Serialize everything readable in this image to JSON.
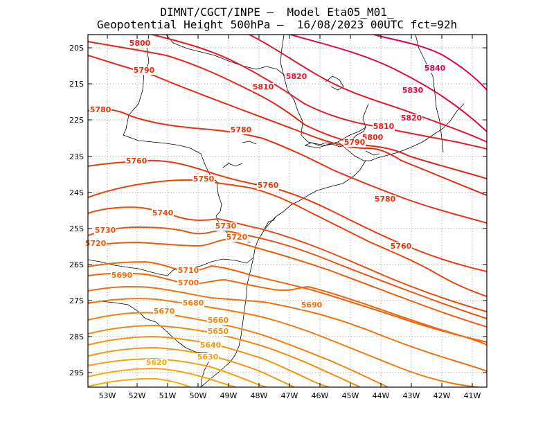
{
  "header": {
    "line1": "DIMNT/CGCT/INPE –  Model Eta05_M01_",
    "line2": "Geopotential Height 500hPa –  16/08/2023 00UTC fct=92h"
  },
  "axes": {
    "lat_labels": [
      "20S",
      "21S",
      "22S",
      "23S",
      "24S",
      "25S",
      "26S",
      "27S",
      "28S",
      "29S"
    ],
    "lon_labels": [
      "53W",
      "52W",
      "51W",
      "50W",
      "49W",
      "48W",
      "47W",
      "46W",
      "45W",
      "44W",
      "43W",
      "42W",
      "41W"
    ]
  },
  "contours": {
    "5840": {
      "label": "5840",
      "color": "#e0004a"
    },
    "5830": {
      "label": "5830",
      "color": "#e20a3c"
    },
    "5820": {
      "label": "5820",
      "color": "#e4142e"
    },
    "5810": {
      "label": "5810",
      "color": "#e51e22"
    },
    "5800": {
      "label": "5800",
      "color": "#e62418"
    },
    "5790": {
      "label": "5790",
      "color": "#e72a10"
    },
    "5780": {
      "label": "5780",
      "color": "#e8300c"
    },
    "5760": {
      "label": "5760",
      "color": "#ea3a0a"
    },
    "5750": {
      "label": "5750",
      "color": "#eb420a"
    },
    "5740": {
      "label": "5740",
      "color": "#ec4a0a"
    },
    "5730": {
      "label": "5730",
      "color": "#ed520a"
    },
    "5720": {
      "label": "5720",
      "color": "#ee5a0a"
    },
    "5710": {
      "label": "5710",
      "color": "#ef620a"
    },
    "5700": {
      "label": "5700",
      "color": "#f0680a"
    },
    "5690": {
      "label": "5690",
      "color": "#f1700a"
    },
    "5680": {
      "label": "5680",
      "color": "#f2780a"
    },
    "5670": {
      "label": "5670",
      "color": "#f3800a"
    },
    "5660": {
      "label": "5660",
      "color": "#f4880a"
    },
    "5650": {
      "label": "5650",
      "color": "#f5900a"
    },
    "5640": {
      "label": "5640",
      "color": "#f5980a"
    },
    "5630": {
      "label": "5630",
      "color": "#f6a00a"
    },
    "5620": {
      "label": "5620",
      "color": "#f7a80a"
    }
  },
  "colors": {
    "frame": "#000000",
    "grid": "#9a9a9a",
    "coast": "#000000"
  }
}
